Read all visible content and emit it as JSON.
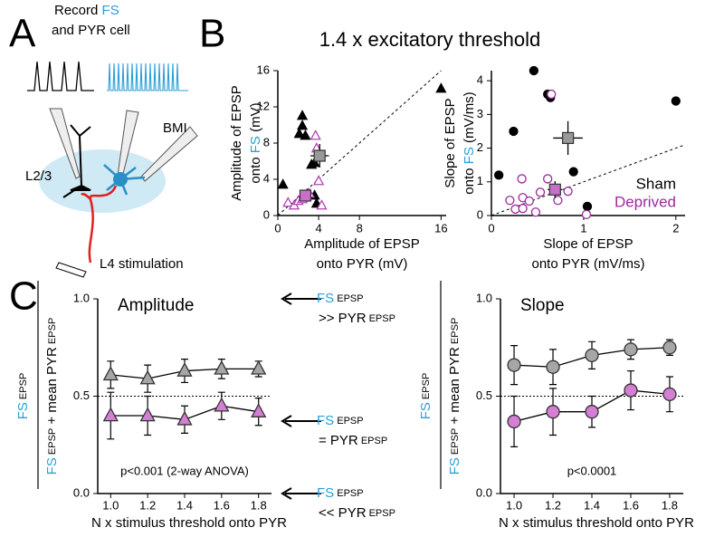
{
  "panels": [
    "A",
    "B",
    "C"
  ],
  "panel_a": {
    "record": [
      [
        {
          "text": "Record "
        },
        {
          "text": "FS",
          "color": "#2a9fd6"
        }
      ],
      [
        {
          "text": "and PYR cell"
        }
      ]
    ],
    "bmi": "BMI",
    "layer": "L2/3",
    "stimulation": "L4 stimulation"
  },
  "panel_b_title": "1.4 x excitatory threshold",
  "panel_c_annotations": [
    {
      "line1": [
        {
          "text": "FS",
          "color": "#2a9fd6"
        },
        {
          "text": " EPSP",
          "small": true
        }
      ],
      "line2": [
        {
          "text": ">> PYR"
        },
        {
          "text": " EPSP",
          "small": true
        }
      ]
    },
    {
      "line1": [
        {
          "text": "FS",
          "color": "#2a9fd6"
        },
        {
          "text": " EPSP",
          "small": true
        }
      ],
      "line2": [
        {
          "text": "= PYR"
        },
        {
          "text": " EPSP",
          "small": true
        }
      ]
    },
    {
      "line1": [
        {
          "text": "FS",
          "color": "#2a9fd6"
        },
        {
          "text": " EPSP",
          "small": true
        }
      ],
      "line2": [
        {
          "text": "<< PYR"
        },
        {
          "text": " EPSP",
          "small": true
        }
      ]
    }
  ],
  "chart_data": [
    {
      "type": "scatter",
      "marker": "triangle",
      "x_label": [
        [
          {
            "text": "Amplitude of EPSP"
          }
        ],
        [
          {
            "text": "onto PYR (mV)"
          }
        ]
      ],
      "y_label": [
        [
          {
            "text": "Amplitude of EPSP"
          }
        ],
        [
          {
            "text": "onto "
          },
          {
            "text": "FS",
            "color": "#2a9fd6"
          },
          {
            "text": " (mV)"
          }
        ]
      ],
      "xlim": [
        0,
        16.5
      ],
      "xticks": [
        0,
        4,
        8,
        16
      ],
      "ylim": [
        0,
        16
      ],
      "yticks": [
        0,
        4,
        8,
        12,
        16
      ],
      "series": [
        {
          "color": "#000000",
          "filled": true,
          "x": [
            0.5,
            2.4,
            2.4,
            2.1,
            2.7,
            3.3,
            3.6,
            3.6,
            3.8,
            16
          ],
          "y": [
            3.4,
            11,
            9.9,
            9.0,
            8.8,
            5.6,
            5.8,
            2.2,
            1.3,
            14
          ]
        },
        {
          "color": "#b040b0",
          "filled": false,
          "x": [
            1.0,
            1.6,
            2.0,
            2.4,
            2.8,
            3.1,
            3.7,
            3.8,
            4.0,
            4.3
          ],
          "y": [
            1.4,
            1.1,
            1.6,
            1.8,
            2.3,
            2.4,
            8.8,
            7.4,
            3.8,
            1.1
          ]
        }
      ],
      "means": [
        {
          "color": "#999999",
          "x": 4.1,
          "y": 6.6,
          "x_error": 0.9,
          "y_error": 1.3
        },
        {
          "color": "#c870c8",
          "x": 2.7,
          "y": 2.2,
          "x_error": 0.5,
          "y_error": 0.6
        }
      ]
    },
    {
      "type": "scatter",
      "marker": "circle",
      "x_label": [
        [
          {
            "text": "Slope of EPSP"
          }
        ],
        [
          {
            "text": "onto PYR (mV/ms)"
          }
        ]
      ],
      "y_label": [
        [
          {
            "text": "Slope of EPSP"
          }
        ],
        [
          {
            "text": "onto "
          },
          {
            "text": "FS",
            "color": "#2a9fd6"
          },
          {
            "text": " (mV/ms)"
          }
        ]
      ],
      "xlim": [
        0,
        2.1
      ],
      "xticks": [
        0,
        1,
        2
      ],
      "ylim": [
        0,
        4.3
      ],
      "yticks": [
        0,
        1,
        2,
        3,
        4
      ],
      "legend": "lower right",
      "series": [
        {
          "name": "Sham",
          "color": "#000000",
          "filled": true,
          "x": [
            0.08,
            0.24,
            0.46,
            0.61,
            0.64,
            0.89,
            1.04,
            2.0
          ],
          "y": [
            1.2,
            2.5,
            4.3,
            3.6,
            3.5,
            1.3,
            0.27,
            3.4
          ]
        },
        {
          "name": "Deprived",
          "color": "#9c2a9c",
          "filled": false,
          "x": [
            0.2,
            0.26,
            0.34,
            0.34,
            0.41,
            0.48,
            0.53,
            0.61,
            0.65,
            0.72,
            0.83,
            1.03,
            0.33
          ],
          "y": [
            0.45,
            0.19,
            0.53,
            0.21,
            0.43,
            0.1,
            0.69,
            1.09,
            3.6,
            0.45,
            0.72,
            0.03,
            1.09
          ]
        }
      ],
      "means": [
        {
          "color": "#999999",
          "x": 0.83,
          "y": 2.3,
          "x_error": 0.16,
          "y_error": 0.5
        },
        {
          "color": "#c870c8",
          "x": 0.69,
          "y": 0.77,
          "x_error": 0.08,
          "y_error": 0.25
        }
      ]
    },
    {
      "type": "line",
      "marker": "triangle",
      "title": "Amplitude",
      "annotation": "p<0.001 (2-way ANOVA)",
      "x_label": "N x stimulus threshold onto PYR",
      "y_label": {
        "numerator": [
          {
            "text": "FS",
            "color": "#2a9fd6"
          },
          {
            "text": " EPSP",
            "small": true
          }
        ],
        "denominator": [
          {
            "text": "FS",
            "color": "#2a9fd6"
          },
          {
            "text": " EPSP",
            "small": true
          },
          {
            "text": " + mean PYR"
          },
          {
            "text": " EPSP",
            "small": true
          }
        ]
      },
      "x": [
        1,
        1.2,
        1.4,
        1.6,
        1.8
      ],
      "xlim": [
        0.93,
        1.87
      ],
      "xticks": [
        {
          "value": 1,
          "label": "1.0"
        },
        1.2,
        1.4,
        1.6,
        1.8
      ],
      "ylim": [
        0,
        1
      ],
      "yticks": [
        {
          "value": 0,
          "label": "0.0"
        },
        0.5,
        {
          "value": 1,
          "label": "1.0"
        }
      ],
      "reference_line": 0.5,
      "series": [
        {
          "color": "#a6a6a6",
          "values": [
            0.61,
            0.59,
            0.63,
            0.64,
            0.64
          ],
          "errors": [
            0.07,
            0.07,
            0.06,
            0.05,
            0.04
          ]
        },
        {
          "color": "#d47ed4",
          "values": [
            0.4,
            0.4,
            0.38,
            0.45,
            0.42
          ],
          "errors": [
            0.12,
            0.1,
            0.07,
            0.07,
            0.07
          ]
        }
      ]
    },
    {
      "type": "line",
      "marker": "circle",
      "title": "Slope",
      "annotation": "p<0.0001",
      "x_label": "N x stimulus threshold onto PYR",
      "y_label": {
        "numerator": [
          {
            "text": "FS",
            "color": "#2a9fd6"
          },
          {
            "text": " EPSP",
            "small": true
          }
        ],
        "denominator": [
          {
            "text": "FS",
            "color": "#2a9fd6"
          },
          {
            "text": " EPSP",
            "small": true
          },
          {
            "text": " + mean PYR"
          },
          {
            "text": " EPSP",
            "small": true
          }
        ]
      },
      "x": [
        1,
        1.2,
        1.4,
        1.6,
        1.8
      ],
      "xlim": [
        0.93,
        1.87
      ],
      "xticks": [
        {
          "value": 1,
          "label": "1.0"
        },
        1.2,
        1.4,
        1.6,
        1.8
      ],
      "ylim": [
        0,
        1
      ],
      "yticks": [
        {
          "value": 0,
          "label": "0.0"
        },
        0.5,
        {
          "value": 1,
          "label": "1.0"
        }
      ],
      "reference_line": 0.5,
      "series": [
        {
          "color": "#a6a6a6",
          "values": [
            0.66,
            0.65,
            0.71,
            0.74,
            0.75
          ],
          "errors": [
            0.1,
            0.09,
            0.07,
            0.05,
            0.04
          ]
        },
        {
          "color": "#d47ed4",
          "values": [
            0.37,
            0.42,
            0.42,
            0.53,
            0.51
          ],
          "errors": [
            0.13,
            0.12,
            0.08,
            0.1,
            0.09
          ]
        }
      ]
    }
  ]
}
